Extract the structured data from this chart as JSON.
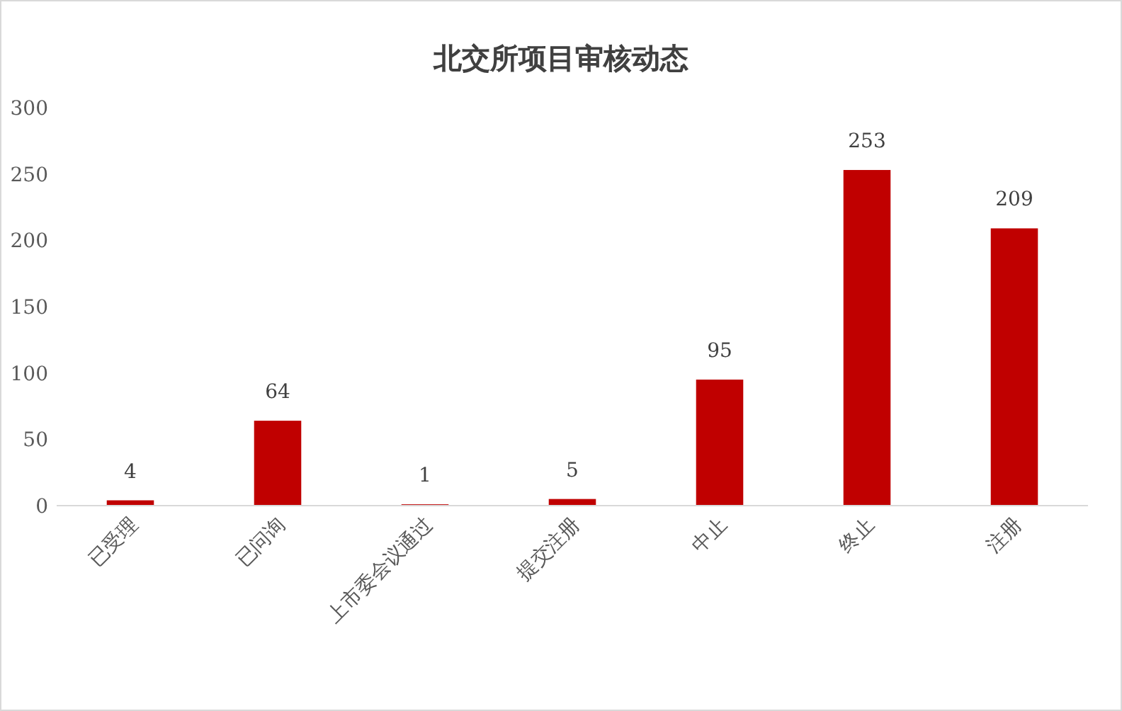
{
  "chart_data": {
    "type": "bar",
    "title": "北交所项目审核动态",
    "categories": [
      "已受理",
      "已问询",
      "上市委会议通过",
      "提交注册",
      "中止",
      "终止",
      "注册"
    ],
    "values": [
      4,
      64,
      1,
      5,
      95,
      253,
      209
    ],
    "color": "#c00000",
    "ylim": [
      0,
      300
    ],
    "yticks": [
      0,
      50,
      100,
      150,
      200,
      250,
      300
    ],
    "data_labels": true
  }
}
